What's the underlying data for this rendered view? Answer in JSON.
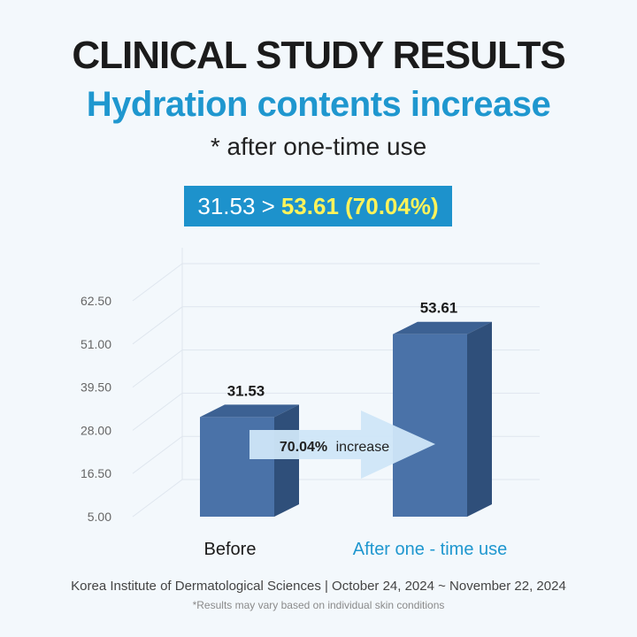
{
  "header": {
    "title": "CLINICAL STUDY RESULTS",
    "subtitle": "Hydration contents increase",
    "note": "* after one-time use"
  },
  "result_box": {
    "before_text": "31.53 >",
    "after_text": "53.61 (70.04%)"
  },
  "chart_data": {
    "type": "bar",
    "categories": [
      "Before",
      "After one - time use"
    ],
    "values": [
      31.53,
      53.61
    ],
    "value_labels": [
      "31.53",
      "53.61"
    ],
    "y_ticks": [
      "5.00",
      "16.50",
      "28.00",
      "39.50",
      "51.00",
      "62.50"
    ],
    "ylim": [
      5,
      62.5
    ],
    "grid": true,
    "annotation": {
      "bold": "70.04%",
      "rest": "increase"
    },
    "colors": {
      "bar_front": "#4a72a8",
      "bar_side": "#2f4f7a",
      "bar_top": "#3c6193",
      "category_after": "#1f97cf",
      "arrow": "#cfe6f8"
    }
  },
  "footer": {
    "source": "Korea Institute of Dermatological Sciences | October 24, 2024 ~ November 22, 2024",
    "disclaimer": "*Results may vary based on individual skin conditions"
  }
}
